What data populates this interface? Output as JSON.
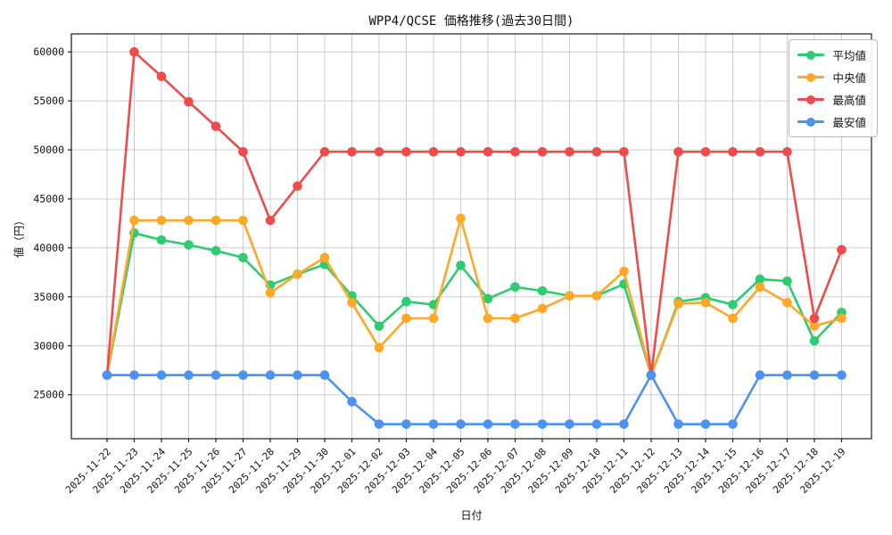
{
  "figure": {
    "background": "#ffffff",
    "grid_color": "#cccccc",
    "spine_color": "#1a1a1a",
    "text_color": "#111111"
  },
  "chart_data": {
    "type": "line",
    "title": "WPP4/QCSE 価格推移(過去30日間)",
    "xlabel": "日付",
    "ylabel": "値（円）",
    "grid": true,
    "legend_position": "upper right",
    "ylim": [
      20500,
      61800
    ],
    "yticks": [
      25000,
      30000,
      35000,
      40000,
      45000,
      50000,
      55000,
      60000
    ],
    "x": [
      "2025-11-22",
      "2025-11-23",
      "2025-11-24",
      "2025-11-25",
      "2025-11-26",
      "2025-11-27",
      "2025-11-28",
      "2025-11-29",
      "2025-11-30",
      "2025-12-01",
      "2025-12-02",
      "2025-12-03",
      "2025-12-04",
      "2025-12-05",
      "2025-12-06",
      "2025-12-07",
      "2025-12-08",
      "2025-12-09",
      "2025-12-10",
      "2025-12-11",
      "2025-12-12",
      "2025-12-13",
      "2025-12-14",
      "2025-12-15",
      "2025-12-16",
      "2025-12-17",
      "2025-12-18",
      "2025-12-19"
    ],
    "series": [
      {
        "name": "平均値",
        "color": "#2ecc71",
        "values": [
          27000,
          41500,
          40800,
          40300,
          39700,
          39000,
          36200,
          37300,
          38300,
          35100,
          32000,
          34500,
          34200,
          38200,
          34800,
          36000,
          35600,
          35100,
          35100,
          36300,
          27000,
          34500,
          34900,
          34200,
          36800,
          36600,
          30500,
          33400
        ]
      },
      {
        "name": "中央値",
        "color": "#ffa726",
        "values": [
          27000,
          42800,
          42800,
          42800,
          42800,
          42800,
          35400,
          37300,
          39000,
          34400,
          29800,
          32800,
          32800,
          43000,
          32800,
          32800,
          33800,
          35100,
          35100,
          37600,
          27000,
          34300,
          34400,
          32800,
          36000,
          34400,
          32000,
          32800
        ]
      },
      {
        "name": "最高値",
        "color": "#ef4b4b",
        "values": [
          27000,
          60000,
          57500,
          54900,
          52400,
          49800,
          42800,
          46300,
          49800,
          49800,
          49800,
          49800,
          49800,
          49800,
          49800,
          49800,
          49800,
          49800,
          49800,
          49800,
          27000,
          49800,
          49800,
          49800,
          49800,
          49800,
          32800,
          39800
        ]
      },
      {
        "name": "最安値",
        "color": "#4d92f0",
        "values": [
          27000,
          27000,
          27000,
          27000,
          27000,
          27000,
          27000,
          27000,
          27000,
          24300,
          22000,
          22000,
          22000,
          22000,
          22000,
          22000,
          22000,
          22000,
          22000,
          22000,
          27000,
          22000,
          22000,
          22000,
          27000,
          27000,
          27000,
          27000
        ]
      }
    ]
  }
}
